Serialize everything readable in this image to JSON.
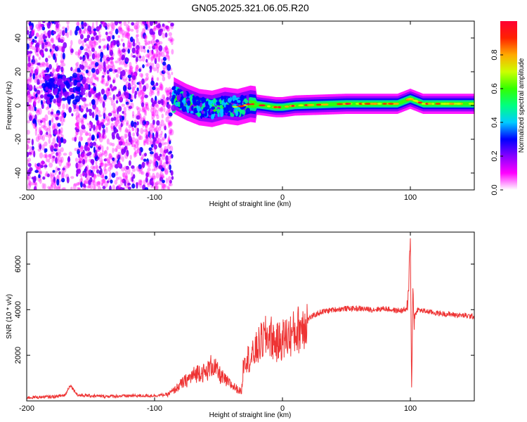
{
  "title": "GN05.2025.321.06.05.R20",
  "chart_data": [
    {
      "type": "heatmap",
      "xlabel": "Height of straight line (km)",
      "ylabel": "Frequency (Hz)",
      "xlim": [
        -200,
        150
      ],
      "ylim": [
        -50,
        50
      ],
      "xticks": [
        -200,
        -100,
        0,
        100
      ],
      "yticks": [
        -40,
        -20,
        0,
        20,
        40
      ],
      "colorbar": {
        "label": "Normalized spectral amplitude",
        "range": [
          0,
          1
        ],
        "ticks": [
          "0.0",
          "0.2",
          "0.4",
          "0.6",
          "0.8"
        ],
        "colors": [
          "#ffffff",
          "#ff00ff",
          "#8800ff",
          "#0000ff",
          "#00ccff",
          "#00ff80",
          "#33ff00",
          "#ccff00",
          "#ffaa00",
          "#ff2200",
          "#ff0033"
        ]
      },
      "description_ridge": {
        "height_km": [
          -85,
          -75,
          -65,
          -55,
          -45,
          -35,
          -25,
          -15,
          -5,
          0,
          10,
          50,
          90,
          100,
          110,
          150
        ],
        "frequency_hz": [
          6,
          2,
          -1,
          -2,
          0,
          -1,
          1,
          0,
          -1,
          -1,
          0,
          1,
          1,
          4,
          1,
          1
        ]
      },
      "noise_region_km": [
        -200,
        -86
      ]
    },
    {
      "type": "line",
      "xlabel": "Height of straight line (km)",
      "ylabel": "SNR (10 * v/v)",
      "xlim": [
        -200,
        150
      ],
      "ylim": [
        0,
        7400
      ],
      "xticks": [
        -200,
        -100,
        0,
        100
      ],
      "yticks": [
        2000,
        4000,
        6000
      ],
      "color": "#ee3333",
      "series": [
        {
          "x": [
            -200,
            -180,
            -170,
            -166,
            -160,
            -140,
            -120,
            -100,
            -90,
            -85,
            -80,
            -75,
            -70,
            -65,
            -60,
            -55,
            -50,
            -45,
            -40,
            -35,
            -32,
            -30,
            -25,
            -20,
            -15,
            -10,
            -5,
            0,
            10,
            20,
            30,
            40,
            50,
            60,
            70,
            80,
            90,
            98,
            100,
            101,
            102,
            103,
            105,
            110,
            120,
            130,
            140,
            150
          ],
          "y": [
            150,
            180,
            250,
            700,
            250,
            200,
            220,
            230,
            280,
            450,
            700,
            900,
            1100,
            1300,
            1200,
            1600,
            1200,
            900,
            700,
            500,
            400,
            2000,
            1800,
            2300,
            2700,
            2900,
            2500,
            2700,
            3000,
            3600,
            3900,
            4000,
            4050,
            4050,
            4000,
            4050,
            3950,
            4000,
            7300,
            300,
            5000,
            3500,
            4000,
            3950,
            3850,
            3800,
            3750,
            3700
          ]
        }
      ]
    }
  ]
}
